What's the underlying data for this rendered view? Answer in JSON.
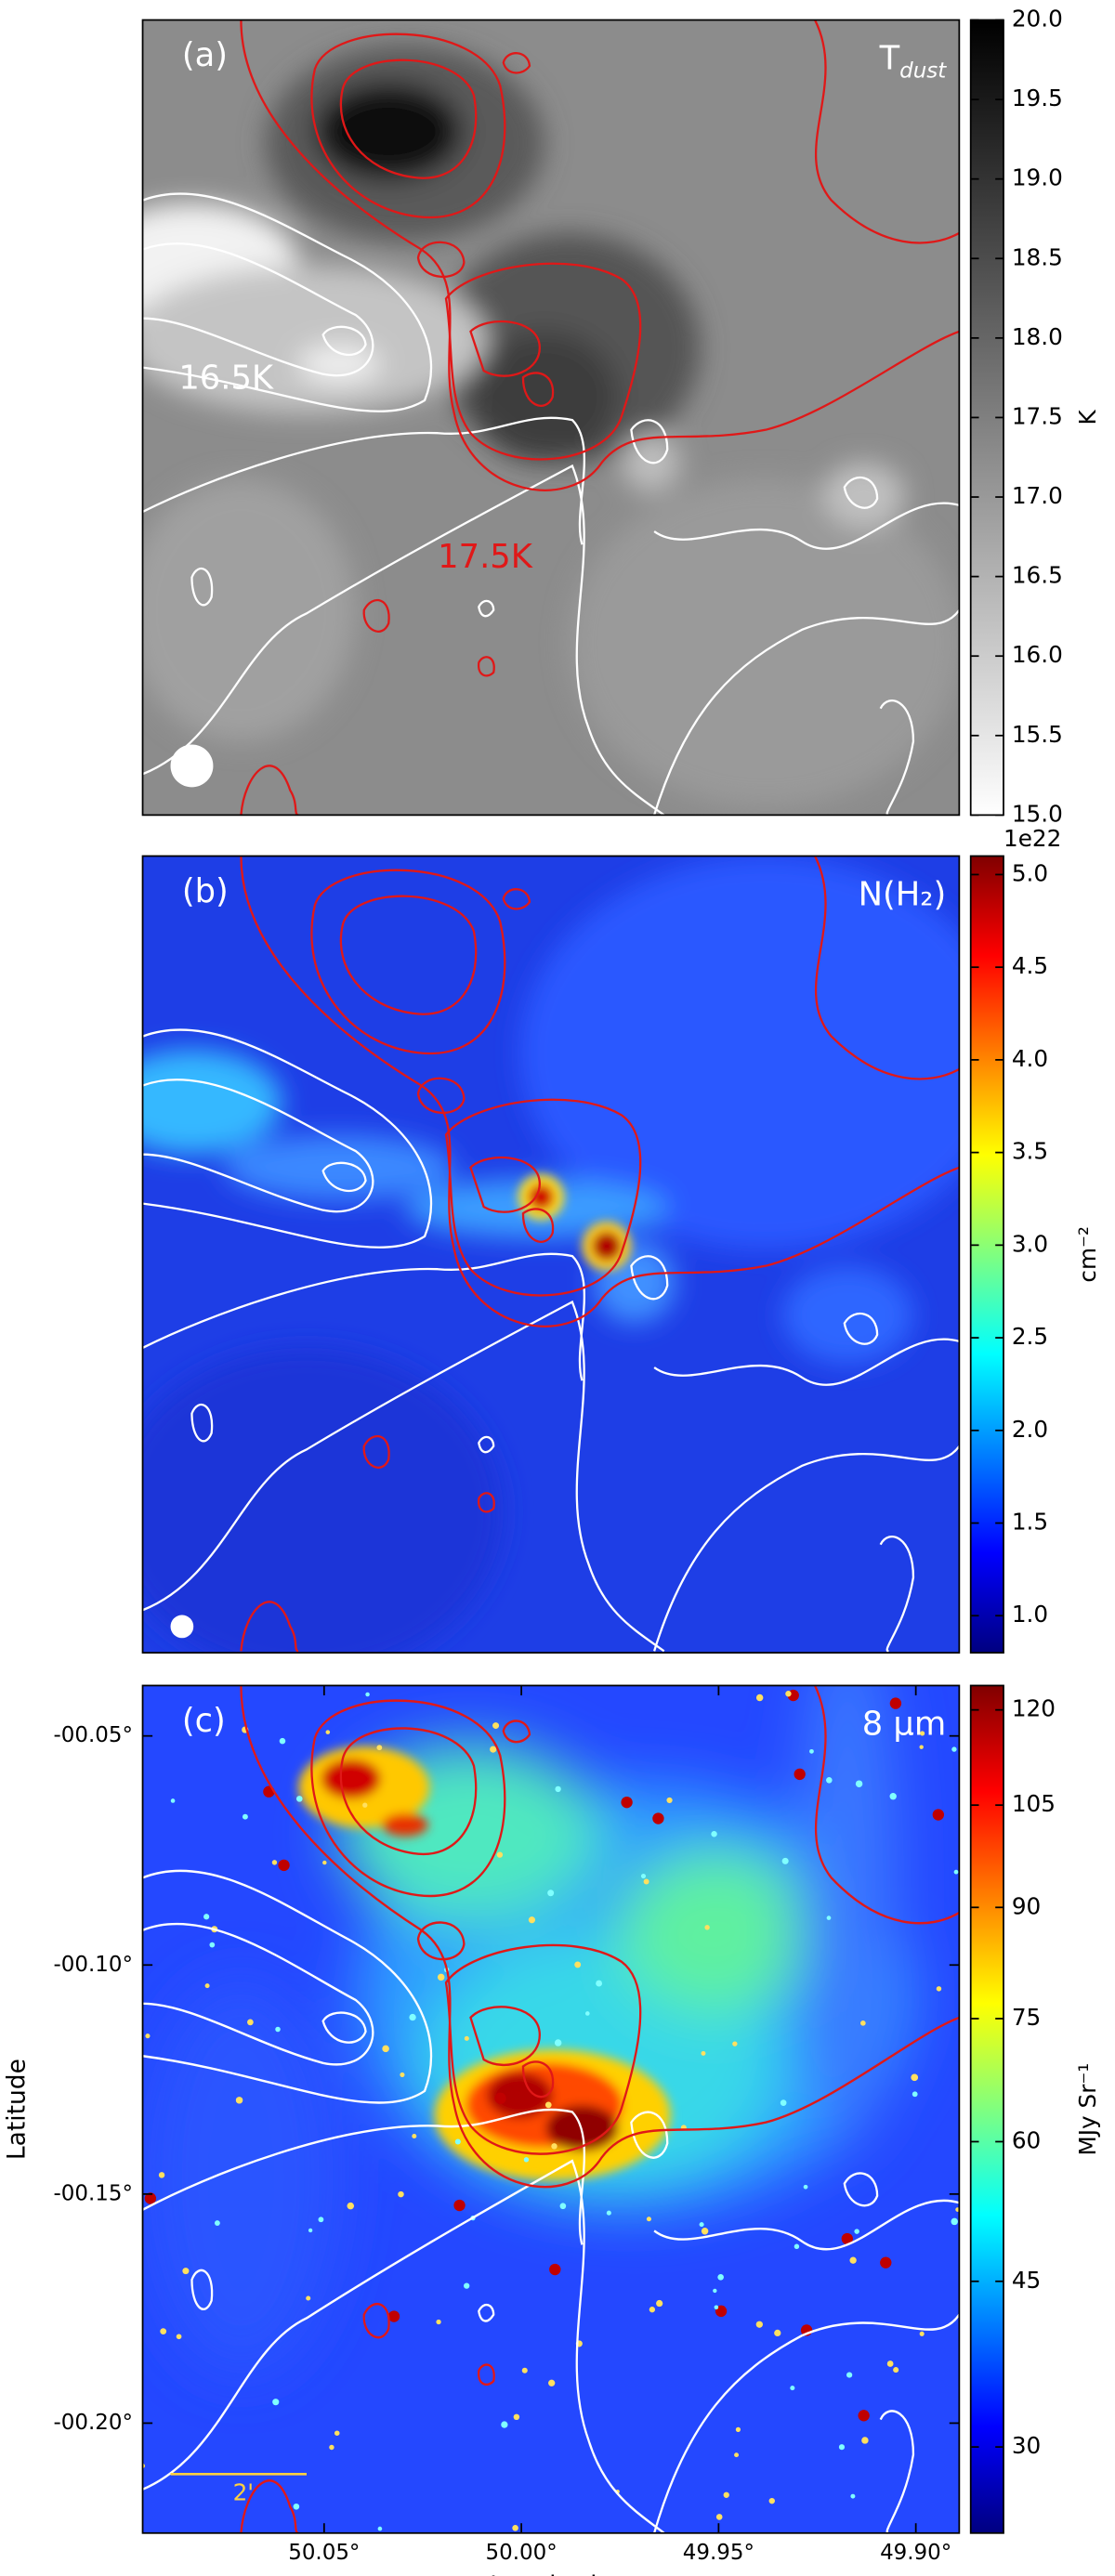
{
  "chart_data": [
    {
      "type": "image",
      "panel_label": "(a)",
      "title": "T",
      "title_subscript": "dust",
      "colormap": "gray_r",
      "colorbar_label": "K",
      "cscale": "linear",
      "clim": [
        15,
        20
      ],
      "cticks": [
        {
          "value": 15,
          "label": "15.0"
        },
        15.5,
        {
          "value": 16,
          "label": "16.0"
        },
        16.5,
        {
          "value": 17,
          "label": "17.0"
        },
        17.5,
        {
          "value": 18,
          "label": "18.0"
        },
        18.5,
        {
          "value": 19,
          "label": "19.0"
        },
        19.5,
        {
          "value": 20,
          "label": "20.0"
        }
      ],
      "annotations": [
        "16.5K",
        "17.5K"
      ]
    },
    {
      "type": "image",
      "panel_label": "(b)",
      "title": "N(H₂)",
      "colormap": "jet",
      "colorbar_label": "cm⁻²",
      "colorbar_offset_label": "1e22",
      "cscale": "linear",
      "clim": [
        0.8,
        5.1
      ],
      "cticks": [
        {
          "value": 1,
          "label": "1.0"
        },
        1.5,
        {
          "value": 2,
          "label": "2.0"
        },
        2.5,
        {
          "value": 3,
          "label": "3.0"
        },
        3.5,
        {
          "value": 4,
          "label": "4.0"
        },
        4.5,
        {
          "value": 5,
          "label": "5.0"
        }
      ]
    },
    {
      "type": "image",
      "panel_label": "(c)",
      "title": "8 μm",
      "colormap": "jet",
      "colorbar_label": "MJy Sr⁻¹",
      "cscale": "sqrt",
      "clim": [
        23.4,
        124
      ],
      "cticks": [
        30,
        45,
        60,
        75,
        90,
        105,
        120
      ],
      "x_label": "Longitude",
      "y_label": "Latitude",
      "xlim": [
        50.096,
        49.889
      ],
      "xticks": [
        {
          "value": 50.05,
          "label": "50.05°"
        },
        {
          "value": 50.0,
          "label": "50.00°"
        },
        {
          "value": 49.95,
          "label": "49.95°"
        },
        {
          "value": 49.9,
          "label": "49.90°"
        }
      ],
      "ylim": [
        -0.224,
        -0.039
      ],
      "yticks": [
        {
          "value": -0.05,
          "label": "-00.05°"
        },
        {
          "value": -0.1,
          "label": "-00.10°"
        },
        {
          "value": -0.15,
          "label": "-00.15°"
        },
        {
          "value": -0.2,
          "label": "-00.20°"
        }
      ],
      "annotations": [
        "2'"
      ]
    }
  ]
}
